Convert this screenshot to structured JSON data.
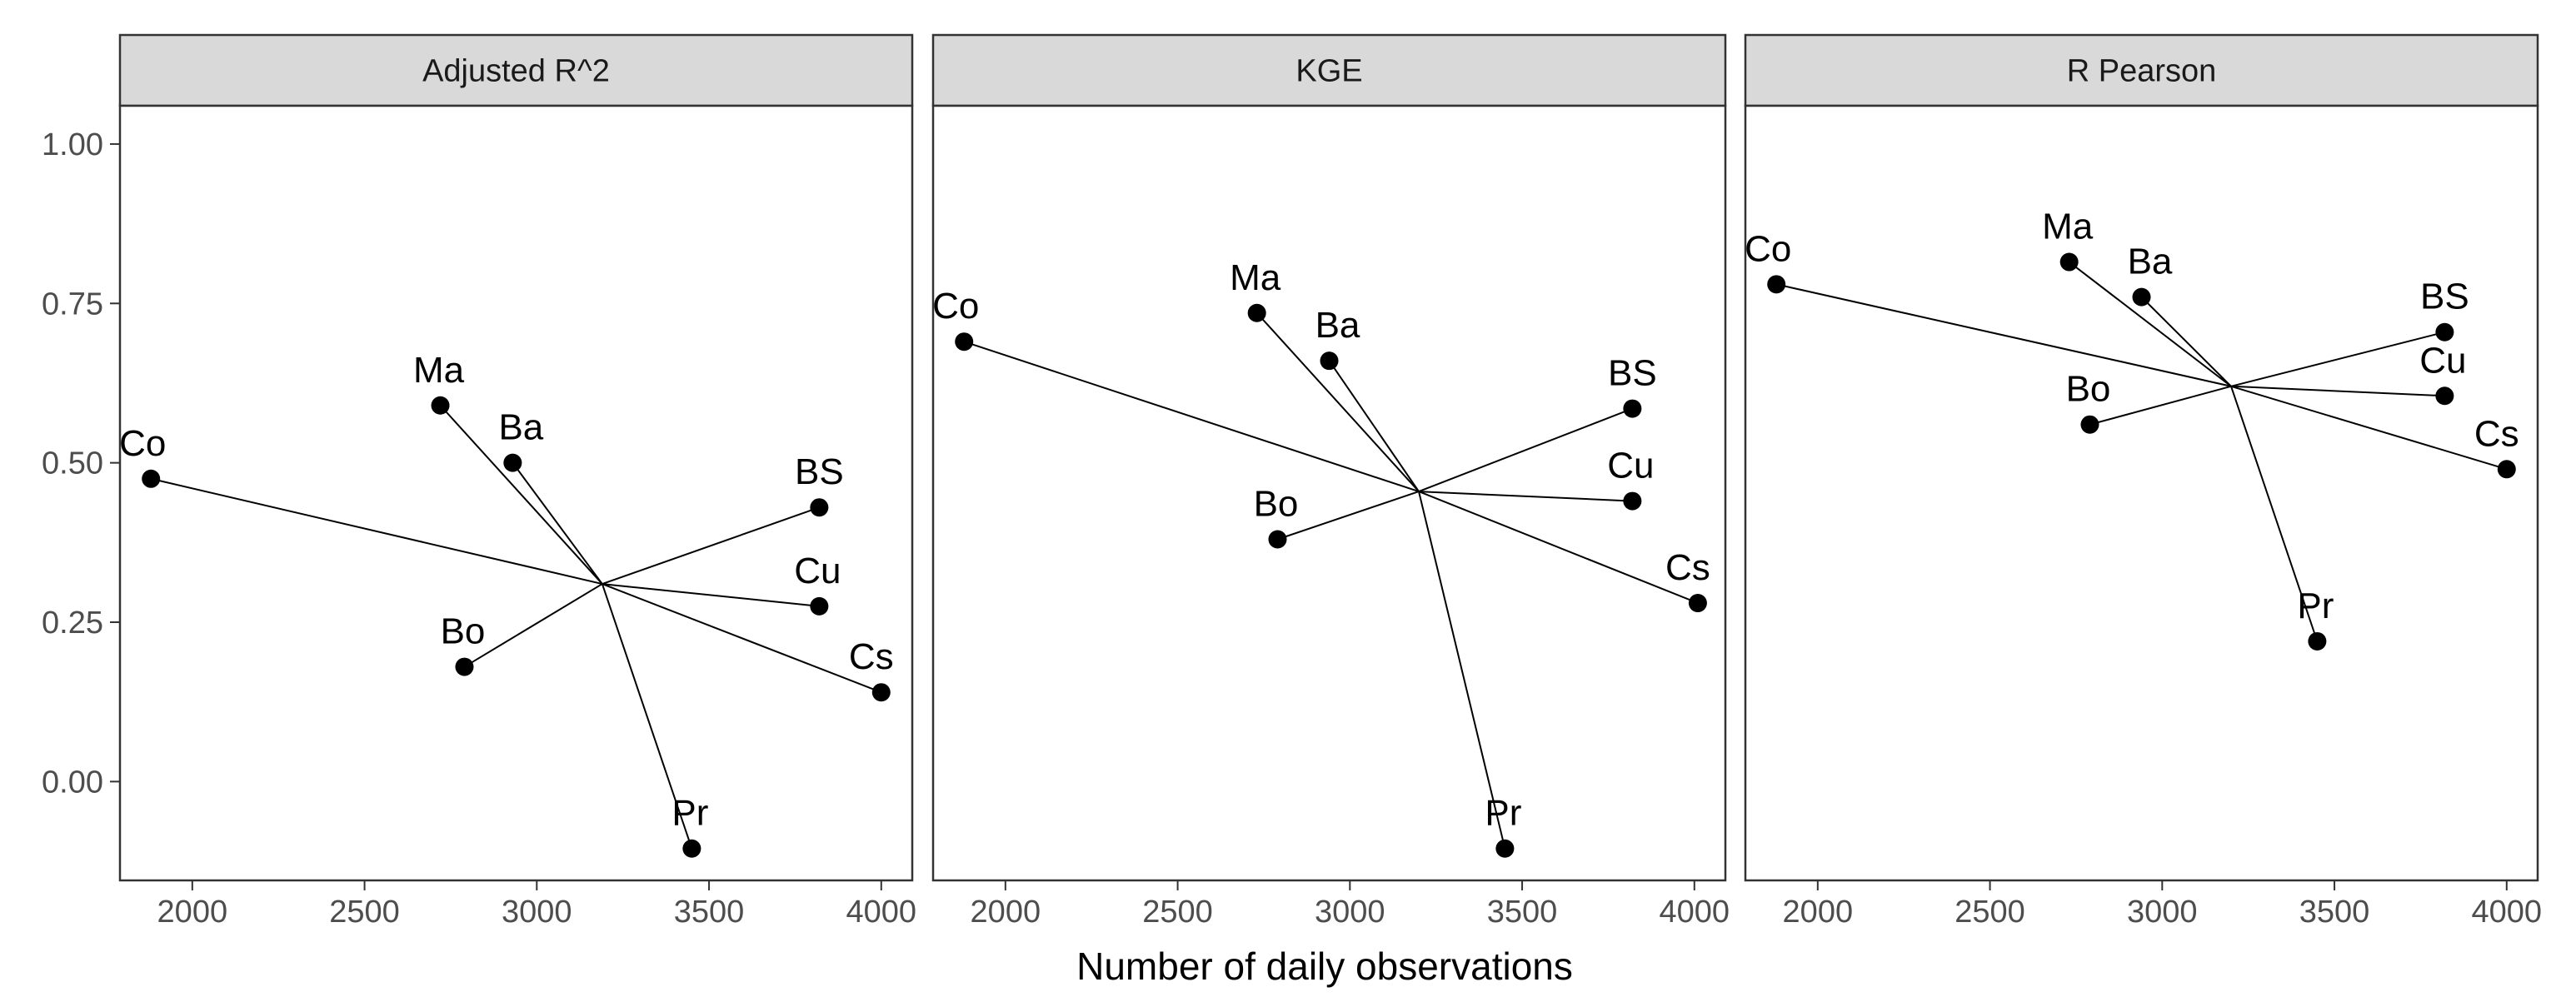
{
  "chart_data": {
    "type": "scatter",
    "xlabel": "Number of daily observations",
    "ylabel": "",
    "xlim": [
      1790,
      4090
    ],
    "ylim": [
      -0.155,
      1.06
    ],
    "x_ticks": [
      2000,
      2500,
      3000,
      3500,
      4000
    ],
    "x_tick_labels": [
      "2000",
      "2500",
      "3000",
      "3500",
      "4000"
    ],
    "y_ticks": [
      0,
      0.25,
      0.5,
      0.75,
      1.0
    ],
    "y_tick_labels": [
      "0.00",
      "0.25",
      "0.50",
      "0.75",
      "1.00"
    ],
    "panels": [
      {
        "title": "Adjusted R^2",
        "center": {
          "x": 3190,
          "y": 0.31
        },
        "points": [
          {
            "label": "Co",
            "x": 1880,
            "y": 0.475
          },
          {
            "label": "Ma",
            "x": 2720,
            "y": 0.59
          },
          {
            "label": "Ba",
            "x": 2930,
            "y": 0.5
          },
          {
            "label": "Bo",
            "x": 2790,
            "y": 0.18
          },
          {
            "label": "BS",
            "x": 3820,
            "y": 0.43
          },
          {
            "label": "Cu",
            "x": 3820,
            "y": 0.275
          },
          {
            "label": "Cs",
            "x": 4000,
            "y": 0.14
          },
          {
            "label": "Pr",
            "x": 3450,
            "y": -0.105
          }
        ]
      },
      {
        "title": "KGE",
        "center": {
          "x": 3200,
          "y": 0.455
        },
        "points": [
          {
            "label": "Co",
            "x": 1880,
            "y": 0.69
          },
          {
            "label": "Ma",
            "x": 2730,
            "y": 0.735
          },
          {
            "label": "Ba",
            "x": 2940,
            "y": 0.66
          },
          {
            "label": "Bo",
            "x": 2790,
            "y": 0.38
          },
          {
            "label": "BS",
            "x": 3820,
            "y": 0.585
          },
          {
            "label": "Cu",
            "x": 3820,
            "y": 0.44
          },
          {
            "label": "Cs",
            "x": 4010,
            "y": 0.28
          },
          {
            "label": "Pr",
            "x": 3450,
            "y": -0.105
          }
        ]
      },
      {
        "title": "R Pearson",
        "center": {
          "x": 3200,
          "y": 0.62
        },
        "points": [
          {
            "label": "Co",
            "x": 1880,
            "y": 0.78
          },
          {
            "label": "Ma",
            "x": 2730,
            "y": 0.815
          },
          {
            "label": "Ba",
            "x": 2940,
            "y": 0.76
          },
          {
            "label": "Bo",
            "x": 2790,
            "y": 0.56
          },
          {
            "label": "BS",
            "x": 3820,
            "y": 0.705
          },
          {
            "label": "Cu",
            "x": 3820,
            "y": 0.605
          },
          {
            "label": "Cs",
            "x": 4000,
            "y": 0.49
          },
          {
            "label": "Pr",
            "x": 3450,
            "y": 0.22
          }
        ]
      }
    ]
  }
}
